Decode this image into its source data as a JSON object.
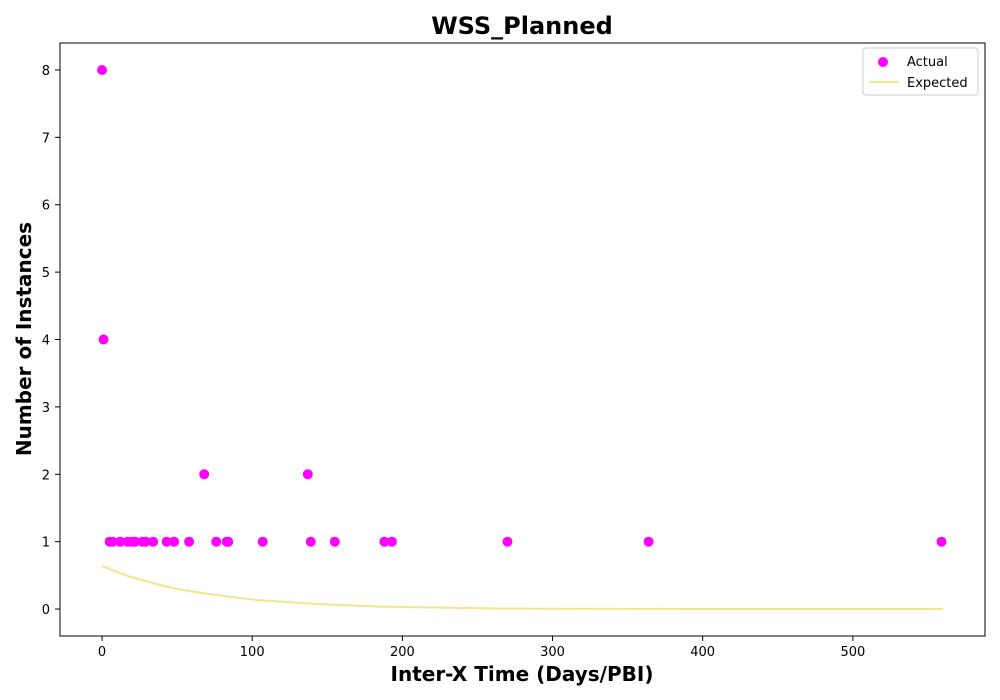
{
  "chart_data": {
    "type": "scatter",
    "title": "WSS_Planned",
    "xlabel": "Inter-X Time (Days/PBI)",
    "ylabel": "Number of Instances",
    "xlim": [
      -28,
      588
    ],
    "ylim": [
      -0.4,
      8.4
    ],
    "xticks": [
      0,
      100,
      200,
      300,
      400,
      500
    ],
    "yticks": [
      0,
      1,
      2,
      3,
      4,
      5,
      6,
      7,
      8
    ],
    "grid": false,
    "legend_position": "top-right",
    "series": [
      {
        "name": "Actual",
        "kind": "scatter",
        "color": "#ff00ff",
        "points": [
          [
            0,
            8
          ],
          [
            1,
            4
          ],
          [
            5,
            1
          ],
          [
            7,
            1
          ],
          [
            12,
            1
          ],
          [
            17,
            1
          ],
          [
            20,
            1
          ],
          [
            22,
            1
          ],
          [
            27,
            1
          ],
          [
            29,
            1
          ],
          [
            34,
            1
          ],
          [
            43,
            1
          ],
          [
            48,
            1
          ],
          [
            58,
            1
          ],
          [
            68,
            2
          ],
          [
            76,
            1
          ],
          [
            83,
            1
          ],
          [
            84,
            1
          ],
          [
            107,
            1
          ],
          [
            137,
            2
          ],
          [
            139,
            1
          ],
          [
            155,
            1
          ],
          [
            188,
            1
          ],
          [
            193,
            1
          ],
          [
            270,
            1
          ],
          [
            364,
            1
          ],
          [
            559,
            1
          ]
        ]
      },
      {
        "name": "Expected",
        "kind": "line",
        "color": "#f0e68c",
        "points": [
          [
            0,
            0.64
          ],
          [
            10,
            0.55
          ],
          [
            20,
            0.47
          ],
          [
            30,
            0.41
          ],
          [
            40,
            0.35
          ],
          [
            50,
            0.3
          ],
          [
            60,
            0.26
          ],
          [
            75,
            0.21
          ],
          [
            90,
            0.17
          ],
          [
            105,
            0.13
          ],
          [
            120,
            0.11
          ],
          [
            140,
            0.08
          ],
          [
            160,
            0.06
          ],
          [
            180,
            0.04
          ],
          [
            200,
            0.03
          ],
          [
            230,
            0.02
          ],
          [
            260,
            0.01
          ],
          [
            300,
            0.005
          ],
          [
            350,
            0.002
          ],
          [
            400,
            0.001
          ],
          [
            450,
            0.0
          ],
          [
            500,
            0.0
          ],
          [
            560,
            0.0
          ]
        ]
      }
    ]
  }
}
